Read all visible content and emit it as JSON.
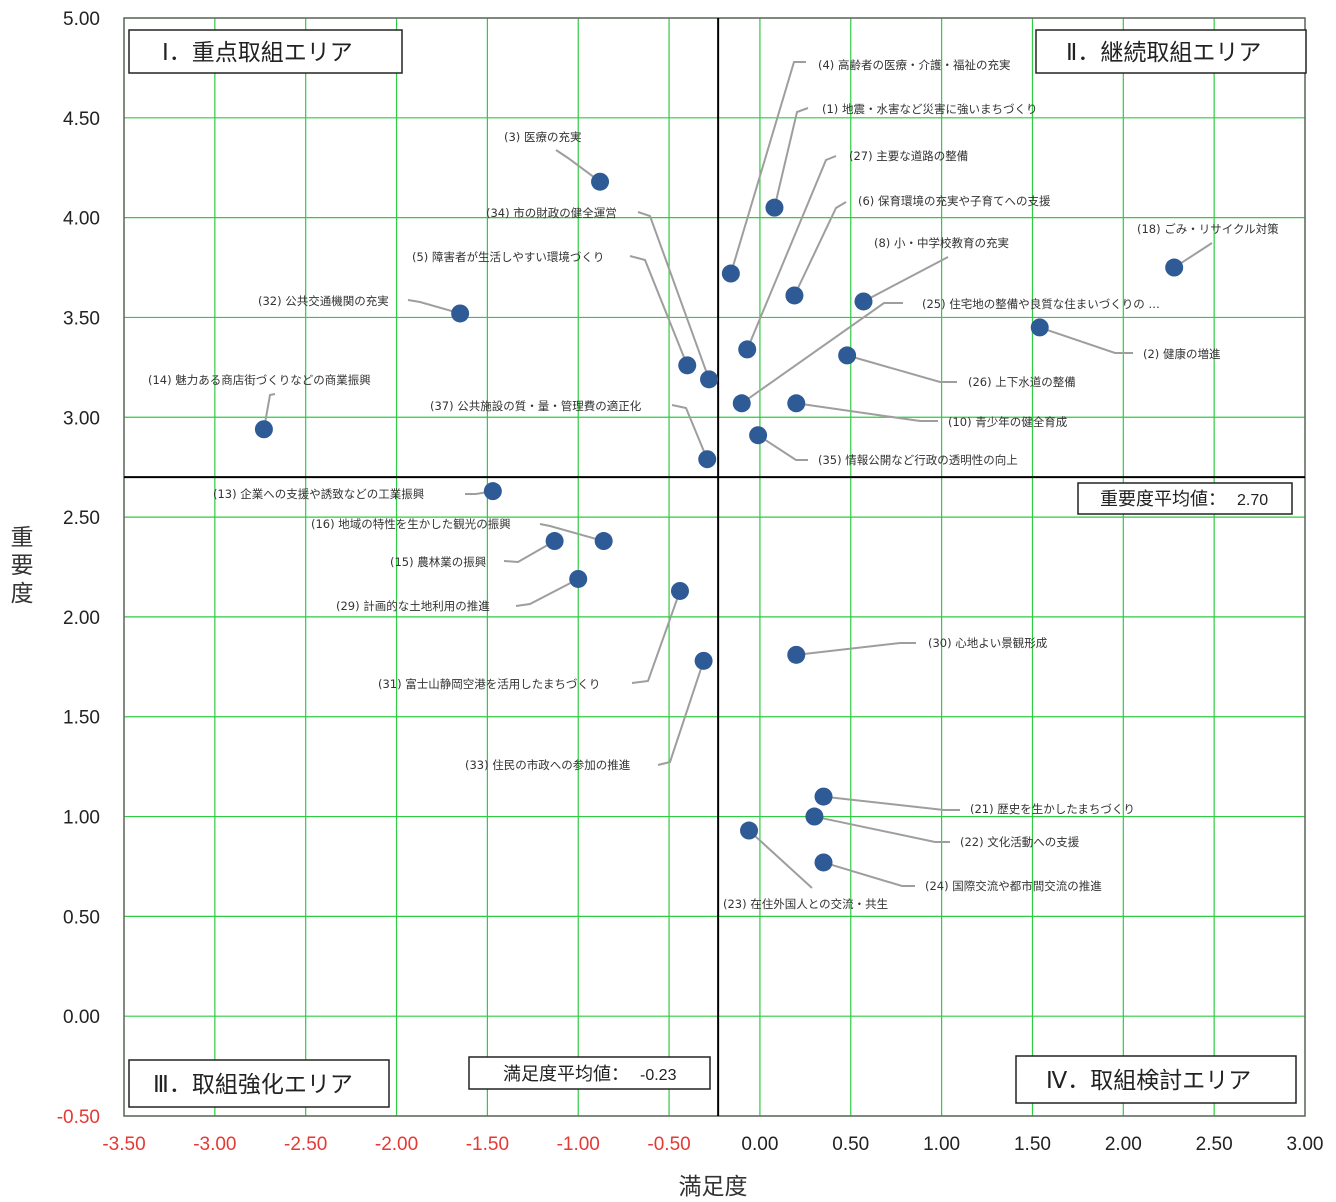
{
  "chart_data": {
    "type": "scatter",
    "xlabel": "満足度",
    "ylabel": "重要度",
    "xlim": [
      -3.5,
      3.0
    ],
    "ylim": [
      -0.5,
      5.0
    ],
    "x_ticks": [
      "-3.50",
      "-3.00",
      "-2.50",
      "-2.00",
      "-1.50",
      "-1.00",
      "-0.50",
      "0.00",
      "0.50",
      "1.00",
      "1.50",
      "2.00",
      "2.50",
      "3.00"
    ],
    "y_ticks": [
      "5.00",
      "4.50",
      "4.00",
      "3.50",
      "3.00",
      "2.50",
      "2.00",
      "1.50",
      "1.00",
      "0.50",
      "0.00",
      "-0.50"
    ],
    "grid": true,
    "grid_color": "#2ecc40",
    "negative_tick_color": "#e53935",
    "point_color": "#2e5a96",
    "avg_x_label": "満足度平均値：",
    "avg_x_value": "-0.23",
    "avg_x": -0.23,
    "avg_y_label": "重要度平均値：",
    "avg_y_value": "2.70",
    "avg_y": 2.7,
    "quadrants": {
      "q1": "Ⅰ．重点取組エリア",
      "q2": "Ⅱ．継続取組エリア",
      "q3": "Ⅲ．取組強化エリア",
      "q4": "Ⅳ．取組検討エリア"
    },
    "points": [
      {
        "label": "(4) 高齢者の医療・介護・福祉の充実",
        "x": -0.16,
        "y": 3.72
      },
      {
        "label": "(1) 地震・水害など災害に強いまちづくり",
        "x": 0.08,
        "y": 4.05
      },
      {
        "label": "(3) 医療の充実",
        "x": -0.88,
        "y": 4.18
      },
      {
        "label": "(27) 主要な道路の整備",
        "x": -0.07,
        "y": 3.34
      },
      {
        "label": "(6) 保育環境の充実や子育てへの支援",
        "x": 0.19,
        "y": 3.61
      },
      {
        "label": "(34) 市の財政の健全運営",
        "x": -0.28,
        "y": 3.19
      },
      {
        "label": "(5) 障害者が生活しやすい環境づくり",
        "x": -0.4,
        "y": 3.26
      },
      {
        "label": "(8) 小・中学校教育の充実",
        "x": 0.57,
        "y": 3.58
      },
      {
        "label": "(18) ごみ・リサイクル対策",
        "x": 2.28,
        "y": 3.75
      },
      {
        "label": "(32) 公共交通機関の充実",
        "x": -1.65,
        "y": 3.52
      },
      {
        "label": "(25) 住宅地の整備や良質な住まいづくりの …",
        "x": -0.1,
        "y": 3.07
      },
      {
        "label": "(2) 健康の増進",
        "x": 1.54,
        "y": 3.45
      },
      {
        "label": "(26) 上下水道の整備",
        "x": 0.48,
        "y": 3.31
      },
      {
        "label": "(14) 魅力ある商店街づくりなどの商業振興",
        "x": -2.73,
        "y": 2.94
      },
      {
        "label": "(37) 公共施設の質・量・管理費の適正化",
        "x": -0.29,
        "y": 2.79
      },
      {
        "label": "(10) 青少年の健全育成",
        "x": 0.2,
        "y": 3.07
      },
      {
        "label": "(35) 情報公開など行政の透明性の向上",
        "x": -0.01,
        "y": 2.91
      },
      {
        "label": "(13) 企業への支援や誘致などの工業振興",
        "x": -1.47,
        "y": 2.63
      },
      {
        "label": "(16) 地域の特性を生かした観光の振興",
        "x": -0.86,
        "y": 2.38
      },
      {
        "label": "(15) 農林業の振興",
        "x": -1.13,
        "y": 2.38
      },
      {
        "label": "(29) 計画的な土地利用の推進",
        "x": -1.0,
        "y": 2.19
      },
      {
        "label": "(31) 富士山静岡空港を活用したまちづくり",
        "x": -0.44,
        "y": 2.13
      },
      {
        "label": "(30) 心地よい景観形成",
        "x": 0.2,
        "y": 1.81
      },
      {
        "label": "(33) 住民の市政への参加の推進",
        "x": -0.31,
        "y": 1.78
      },
      {
        "label": "(21) 歴史を生かしたまちづくり",
        "x": 0.35,
        "y": 1.1
      },
      {
        "label": "(22) 文化活動への支援",
        "x": 0.3,
        "y": 1.0
      },
      {
        "label": "(23) 在住外国人との交流・共生",
        "x": -0.06,
        "y": 0.93
      },
      {
        "label": "(24) 国際交流や都市間交流の推進",
        "x": 0.35,
        "y": 0.77
      }
    ]
  }
}
